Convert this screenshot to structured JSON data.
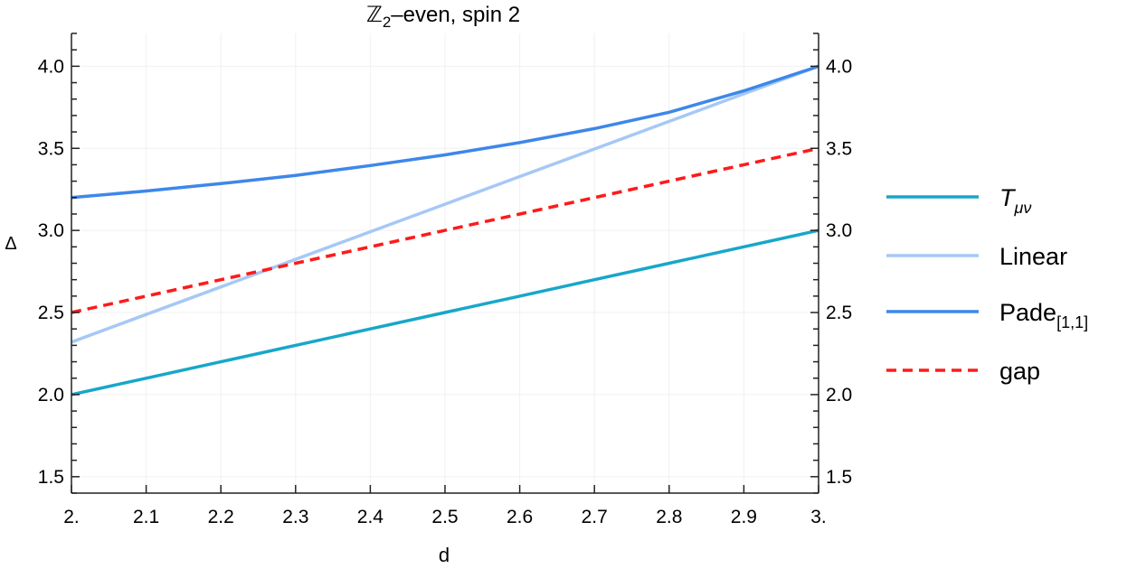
{
  "chart_data": {
    "type": "line",
    "title": "ℤ2–even, spin 2",
    "title_main": "ℤ",
    "title_sub": "2",
    "title_rest": "–even, spin 2",
    "xlabel": "d",
    "ylabel": "Δ",
    "xlim": [
      2.0,
      3.0
    ],
    "ylim": [
      1.4,
      4.2
    ],
    "grid": true,
    "legend_placement": "right",
    "x_ticks": [
      2.0,
      2.1,
      2.2,
      2.3,
      2.4,
      2.5,
      2.6,
      2.7,
      2.8,
      2.9,
      3.0
    ],
    "x_tick_labels": [
      "2.",
      "2.1",
      "2.2",
      "2.3",
      "2.4",
      "2.5",
      "2.6",
      "2.7",
      "2.8",
      "2.9",
      "3."
    ],
    "y_ticks": [
      1.5,
      2.0,
      2.5,
      3.0,
      3.5,
      4.0
    ],
    "y_tick_labels": [
      "1.5",
      "2.0",
      "2.5",
      "3.0",
      "3.5",
      "4.0"
    ],
    "x": [
      2.0,
      2.1,
      2.2,
      2.3,
      2.4,
      2.5,
      2.6,
      2.7,
      2.8,
      2.9,
      3.0
    ],
    "series": [
      {
        "name": "Tμν",
        "name_main": "T",
        "name_sub": "μν",
        "color": "#17a7c9",
        "dash": false,
        "values": [
          2.0,
          2.1,
          2.2,
          2.3,
          2.4,
          2.5,
          2.6,
          2.7,
          2.8,
          2.9,
          3.0
        ]
      },
      {
        "name": "Linear",
        "name_main": "Linear",
        "name_sub": "",
        "color": "#a6c8f5",
        "dash": false,
        "values": [
          2.32,
          2.488,
          2.656,
          2.824,
          2.992,
          3.16,
          3.328,
          3.496,
          3.664,
          3.832,
          4.0
        ]
      },
      {
        "name": "Pade[1,1]",
        "name_main": "Pade",
        "name_sub": "[1,1]",
        "color": "#3d87ea",
        "dash": false,
        "values": [
          3.2,
          3.24,
          3.285,
          3.335,
          3.395,
          3.46,
          3.535,
          3.62,
          3.72,
          3.85,
          4.0
        ]
      },
      {
        "name": "gap",
        "name_main": "gap",
        "name_sub": "",
        "color": "#ff1a1a",
        "dash": true,
        "values": [
          2.5,
          2.6,
          2.7,
          2.8,
          2.9,
          3.0,
          3.1,
          3.2,
          3.3,
          3.4,
          3.5
        ]
      }
    ]
  }
}
